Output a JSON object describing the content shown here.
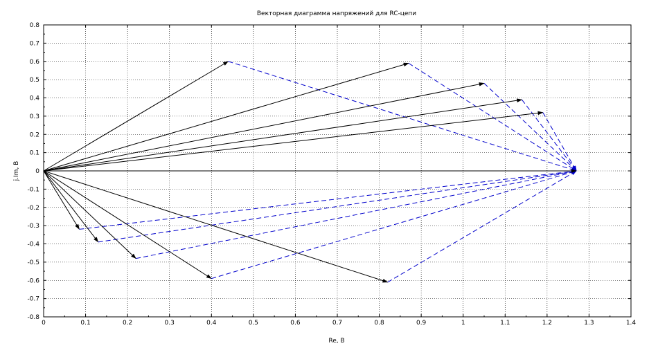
{
  "chart_data": {
    "type": "line",
    "title": "Векторная диаграмма напряжений для RC-цепи",
    "xlabel": "Re, B",
    "ylabel": "j.Im, B",
    "xlim": [
      0,
      1.4
    ],
    "ylim": [
      -0.8,
      0.8
    ],
    "xticks": [
      "0",
      "0.1",
      "0.2",
      "0.3",
      "0.4",
      "0.5",
      "0.6",
      "0.7",
      "0.8",
      "0.9",
      "1",
      "1.1",
      "1.2",
      "1.3",
      "1.4"
    ],
    "yticks": [
      "0.8",
      "0.7",
      "0.6",
      "0.5",
      "0.4",
      "0.3",
      "0.2",
      "0.1",
      "0",
      "-0.1",
      "-0.2",
      "-0.3",
      "-0.4",
      "-0.5",
      "-0.6",
      "-0.7",
      "-0.8"
    ],
    "grid": true,
    "total_voltage": [
      1.27,
      0
    ],
    "capacitor_vectors": [
      {
        "x": 0.44,
        "y": 0.6
      },
      {
        "x": 0.87,
        "y": 0.59
      },
      {
        "x": 1.05,
        "y": 0.48
      },
      {
        "x": 1.14,
        "y": 0.39
      },
      {
        "x": 1.19,
        "y": 0.32
      },
      {
        "x": 0.085,
        "y": -0.32
      },
      {
        "x": 0.13,
        "y": -0.39
      },
      {
        "x": 0.22,
        "y": -0.48
      },
      {
        "x": 0.4,
        "y": -0.59
      },
      {
        "x": 0.82,
        "y": -0.61
      }
    ],
    "colors": {
      "solid": "#000000",
      "dashed": "#0000cc",
      "grid": "#000000"
    }
  }
}
